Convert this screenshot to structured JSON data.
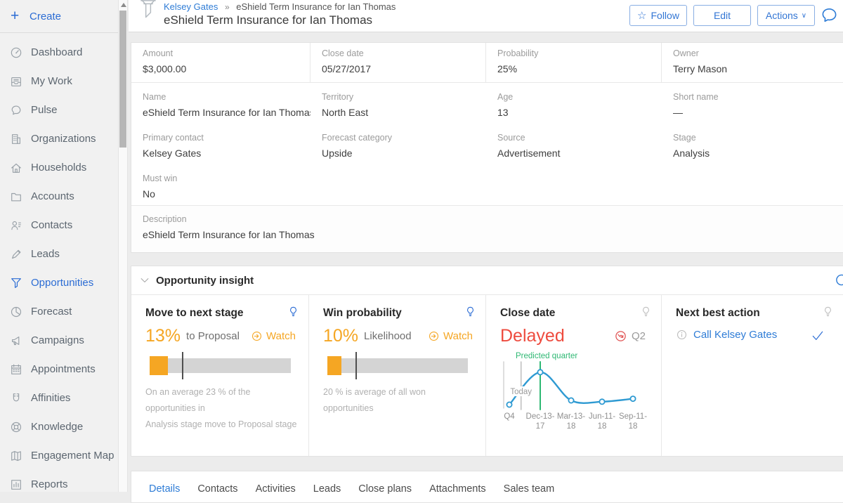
{
  "colors": {
    "accent": "#2b6cd4",
    "link_blue": "#2e7cd6",
    "orange": "#f5a623",
    "red": "#ee4b3e",
    "green": "#2eb873",
    "chart_blue": "#2e9ad2",
    "benchmark_gray": "#4f4f4f"
  },
  "sidebar": {
    "create_label": "Create",
    "items": [
      {
        "label": "Dashboard",
        "icon": "dashboard-icon"
      },
      {
        "label": "My Work",
        "icon": "my-work-icon"
      },
      {
        "label": "Pulse",
        "icon": "pulse-icon"
      },
      {
        "label": "Organizations",
        "icon": "organizations-icon"
      },
      {
        "label": "Households",
        "icon": "households-icon"
      },
      {
        "label": "Accounts",
        "icon": "accounts-icon"
      },
      {
        "label": "Contacts",
        "icon": "contacts-icon"
      },
      {
        "label": "Leads",
        "icon": "leads-icon"
      },
      {
        "label": "Opportunities",
        "icon": "opportunities-icon",
        "active": true
      },
      {
        "label": "Forecast",
        "icon": "forecast-icon"
      },
      {
        "label": "Campaigns",
        "icon": "campaigns-icon"
      },
      {
        "label": "Appointments",
        "icon": "appointments-icon"
      },
      {
        "label": "Affinities",
        "icon": "affinities-icon"
      },
      {
        "label": "Knowledge",
        "icon": "knowledge-icon"
      },
      {
        "label": "Engagement Map",
        "icon": "engagement-map-icon"
      },
      {
        "label": "Reports",
        "icon": "reports-icon"
      }
    ]
  },
  "header": {
    "breadcrumb": {
      "parent": "Kelsey Gates",
      "separator": "»",
      "current": "eShield Term Insurance for Ian Thomas"
    },
    "title": "eShield Term Insurance for Ian Thomas",
    "follow_label": "Follow",
    "edit_label": "Edit",
    "actions_label": "Actions"
  },
  "details": {
    "rows": [
      [
        {
          "label": "Amount",
          "value": "$3,000.00"
        },
        {
          "label": "Close date",
          "value": "05/27/2017"
        },
        {
          "label": "Probability",
          "value": "25%"
        },
        {
          "label": "Owner",
          "value": "Terry Mason"
        }
      ],
      [
        {
          "label": "Name",
          "value": "eShield Term Insurance for Ian Thomas"
        },
        {
          "label": "Territory",
          "value": "North East"
        },
        {
          "label": "Age",
          "value": "13"
        },
        {
          "label": "Short name",
          "value": "—"
        }
      ],
      [
        {
          "label": "Primary contact",
          "value": "Kelsey Gates",
          "link": true
        },
        {
          "label": "Forecast category",
          "value": "Upside"
        },
        {
          "label": "Source",
          "value": "Advertisement"
        },
        {
          "label": "Stage",
          "value": "Analysis"
        }
      ],
      [
        {
          "label": "Must win",
          "value": "No"
        }
      ]
    ],
    "description": {
      "label": "Description",
      "value": "eShield Term Insurance for Ian Thomas"
    }
  },
  "insight": {
    "title": "Opportunity insight",
    "cards": {
      "move_stage": {
        "title": "Move to next stage",
        "percent": "13%",
        "percent_value": 13,
        "suffix": "to  Proposal",
        "watch_label": "Watch",
        "benchmark_value": 23,
        "note_line1": "On an average 23 % of the opportunities in",
        "note_line2": "Analysis  stage move to Proposal  stage"
      },
      "win_probability": {
        "title": "Win probability",
        "percent": "10%",
        "percent_value": 10,
        "suffix": "Likelihood",
        "watch_label": "Watch",
        "benchmark_value": 20,
        "note_line1": "20 % is  average of all won opportunities",
        "note_line2": ""
      },
      "close_date": {
        "title": "Close date",
        "status": "Delayed",
        "quarter": "Q2",
        "chart_data": {
          "type": "line",
          "ticks": [
            [
              "Q4",
              ""
            ],
            [
              "Dec-13-",
              "17"
            ],
            [
              "Mar-13-",
              "18"
            ],
            [
              "Jun-11-",
              "18"
            ],
            [
              "Sep-11-",
              "18"
            ]
          ],
          "values": [
            0.05,
            0.82,
            0.15,
            0.12,
            0.19
          ],
          "today_pos": 0.38,
          "predicted_index": 1,
          "today_label": "Today",
          "predicted_label": "Predicted quarter",
          "line_color": "#2e9ad2",
          "predicted_color": "#2eb873",
          "today_color": "#bdbdbd",
          "axis_color": "#cfcfcf"
        }
      },
      "next_best_action": {
        "title": "Next best action",
        "action": "Call Kelsey Gates"
      }
    }
  },
  "tabs": [
    {
      "label": "Details",
      "active": true
    },
    {
      "label": "Contacts"
    },
    {
      "label": "Activities"
    },
    {
      "label": "Leads"
    },
    {
      "label": "Close plans"
    },
    {
      "label": "Attachments"
    },
    {
      "label": "Sales team"
    }
  ]
}
